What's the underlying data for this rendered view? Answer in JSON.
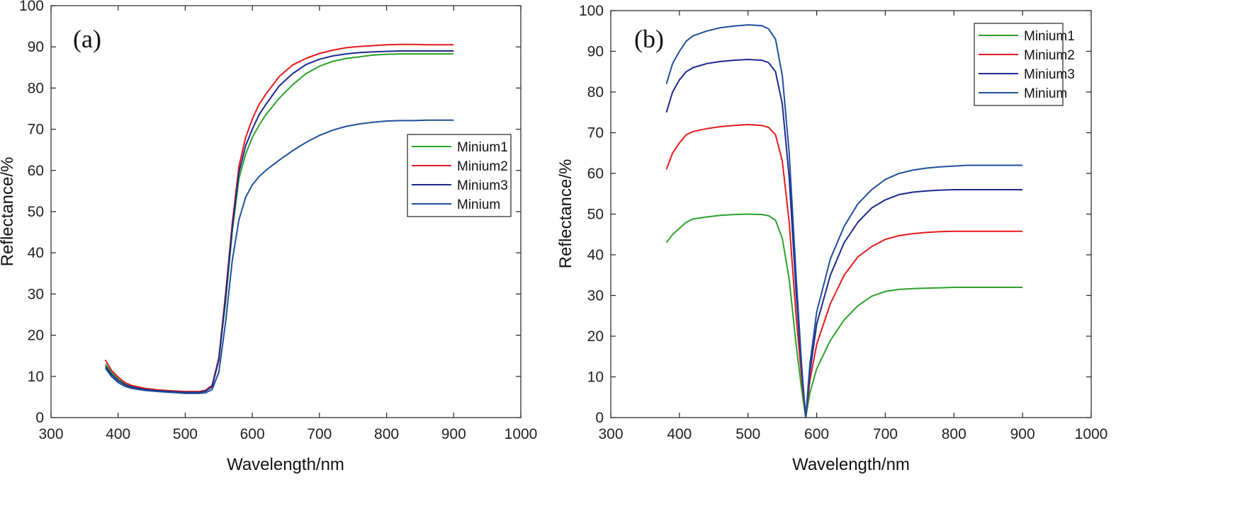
{
  "chart_data": [
    {
      "type": "line",
      "panel_label": "(a)",
      "xlabel": "Wavelength/nm",
      "ylabel": "Reflectance/%",
      "xlim": [
        300,
        1000
      ],
      "ylim": [
        0,
        100
      ],
      "xticks": [
        300,
        400,
        500,
        600,
        700,
        800,
        900,
        1000
      ],
      "yticks": [
        0,
        10,
        20,
        30,
        40,
        50,
        60,
        70,
        80,
        90,
        100
      ],
      "legend_position": "right",
      "series": [
        {
          "name": "Minium1",
          "color": "#2ca02c",
          "x": [
            381,
            390,
            400,
            410,
            420,
            440,
            460,
            480,
            500,
            520,
            530,
            540,
            550,
            560,
            570,
            580,
            590,
            600,
            610,
            620,
            640,
            660,
            680,
            700,
            720,
            740,
            760,
            780,
            800,
            820,
            840,
            860,
            880,
            900
          ],
          "y": [
            13,
            11,
            9.5,
            8.3,
            7.6,
            7,
            6.7,
            6.5,
            6.3,
            6.3,
            6.6,
            7.8,
            14,
            28,
            45,
            58,
            64,
            68,
            71,
            73.5,
            77.5,
            80.8,
            83.5,
            85.3,
            86.5,
            87.2,
            87.6,
            88,
            88.2,
            88.3,
            88.3,
            88.3,
            88.3,
            88.3
          ]
        },
        {
          "name": "Minium2",
          "color": "#e41a1c",
          "x": [
            381,
            390,
            400,
            410,
            420,
            440,
            460,
            480,
            500,
            520,
            530,
            540,
            550,
            560,
            570,
            580,
            590,
            600,
            610,
            620,
            640,
            660,
            680,
            700,
            720,
            740,
            760,
            780,
            800,
            820,
            840,
            860,
            880,
            900
          ],
          "y": [
            14,
            11.5,
            9.8,
            8.5,
            7.8,
            7.1,
            6.7,
            6.5,
            6.3,
            6.3,
            6.6,
            7.8,
            14.5,
            30,
            47,
            61,
            68,
            72.5,
            76,
            78.5,
            82.8,
            85.6,
            87.2,
            88.4,
            89.2,
            89.8,
            90.1,
            90.3,
            90.5,
            90.6,
            90.6,
            90.5,
            90.5,
            90.5
          ]
        },
        {
          "name": "Minium3",
          "color": "#1b2a8c",
          "x": [
            381,
            390,
            400,
            410,
            420,
            440,
            460,
            480,
            500,
            520,
            530,
            540,
            550,
            560,
            570,
            580,
            590,
            600,
            610,
            620,
            640,
            660,
            680,
            700,
            720,
            740,
            760,
            780,
            800,
            820,
            840,
            860,
            880,
            900
          ],
          "y": [
            12.5,
            10.5,
            9,
            8,
            7.4,
            6.8,
            6.5,
            6.3,
            6.1,
            6.1,
            6.4,
            7.5,
            14,
            29,
            46,
            59.5,
            66,
            70,
            73.5,
            76,
            80.5,
            83.5,
            85.7,
            87,
            87.8,
            88.3,
            88.6,
            88.8,
            88.9,
            89,
            89,
            89,
            89,
            89
          ]
        },
        {
          "name": "Minium",
          "color": "#1f4e9c",
          "x": [
            381,
            390,
            400,
            410,
            420,
            440,
            460,
            480,
            500,
            520,
            530,
            540,
            550,
            560,
            570,
            580,
            590,
            600,
            610,
            620,
            640,
            660,
            680,
            700,
            720,
            740,
            760,
            780,
            800,
            820,
            840,
            860,
            880,
            900
          ],
          "y": [
            12,
            10,
            8.5,
            7.6,
            7.1,
            6.6,
            6.3,
            6.1,
            5.9,
            5.9,
            6,
            6.8,
            11,
            23,
            38,
            48,
            53.5,
            56.5,
            58.5,
            60,
            62.5,
            64.8,
            66.8,
            68.5,
            69.8,
            70.7,
            71.3,
            71.7,
            72,
            72.1,
            72.1,
            72.2,
            72.2,
            72.2
          ]
        }
      ]
    },
    {
      "type": "line",
      "panel_label": "(b)",
      "xlabel": "Wavelength/nm",
      "ylabel": "Reflectance/%",
      "xlim": [
        300,
        1000
      ],
      "ylim": [
        0,
        100
      ],
      "xticks": [
        300,
        400,
        500,
        600,
        700,
        800,
        900,
        1000
      ],
      "yticks": [
        0,
        10,
        20,
        30,
        40,
        50,
        60,
        70,
        80,
        90,
        100
      ],
      "legend_position": "top-right",
      "series": [
        {
          "name": "Minium1",
          "color": "#2ca02c",
          "x": [
            381,
            390,
            400,
            410,
            420,
            440,
            460,
            480,
            500,
            520,
            530,
            540,
            550,
            560,
            570,
            578,
            584,
            590,
            600,
            620,
            640,
            660,
            680,
            700,
            720,
            740,
            760,
            780,
            800,
            820,
            840,
            860,
            880,
            900
          ],
          "y": [
            43,
            45,
            46.5,
            48,
            48.8,
            49.3,
            49.7,
            49.9,
            50,
            49.9,
            49.6,
            48.5,
            44,
            34,
            18,
            7,
            0,
            6,
            12,
            19,
            24,
            27.5,
            29.8,
            31,
            31.5,
            31.7,
            31.8,
            31.9,
            32,
            32,
            32,
            32,
            32,
            32
          ]
        },
        {
          "name": "Minium2",
          "color": "#e41a1c",
          "x": [
            381,
            390,
            400,
            410,
            420,
            440,
            460,
            480,
            500,
            520,
            530,
            540,
            550,
            560,
            570,
            578,
            584,
            590,
            600,
            620,
            640,
            660,
            680,
            700,
            720,
            740,
            760,
            780,
            800,
            820,
            840,
            860,
            880,
            900
          ],
          "y": [
            61,
            65,
            67.5,
            69.5,
            70.3,
            71,
            71.5,
            71.8,
            72,
            71.8,
            71.3,
            69.5,
            63,
            48,
            25,
            10,
            0,
            9,
            18,
            28,
            35,
            39.5,
            42,
            43.8,
            44.7,
            45.2,
            45.5,
            45.7,
            45.8,
            45.8,
            45.8,
            45.8,
            45.8,
            45.8
          ]
        },
        {
          "name": "Minium3",
          "color": "#1b2a8c",
          "x": [
            381,
            390,
            400,
            410,
            420,
            440,
            460,
            480,
            500,
            520,
            530,
            540,
            550,
            560,
            570,
            578,
            584,
            590,
            600,
            620,
            640,
            660,
            680,
            700,
            720,
            740,
            760,
            780,
            800,
            820,
            840,
            860,
            880,
            900
          ],
          "y": [
            75,
            80,
            83,
            85,
            86,
            87,
            87.5,
            87.8,
            88,
            87.8,
            87.2,
            85,
            77,
            59,
            31,
            12,
            0,
            11,
            23,
            35,
            43,
            48,
            51.5,
            53.5,
            54.8,
            55.4,
            55.7,
            55.9,
            56,
            56,
            56,
            56,
            56,
            56
          ]
        },
        {
          "name": "Minium",
          "color": "#1f4e9c",
          "x": [
            381,
            390,
            400,
            410,
            420,
            440,
            460,
            480,
            500,
            520,
            530,
            540,
            550,
            560,
            570,
            578,
            584,
            590,
            600,
            620,
            640,
            660,
            680,
            700,
            720,
            740,
            760,
            780,
            800,
            820,
            840,
            860,
            880,
            900
          ],
          "y": [
            82,
            87,
            90,
            92.5,
            93.8,
            95,
            95.8,
            96.2,
            96.5,
            96.3,
            95.5,
            93,
            84,
            65,
            35,
            13,
            0,
            13,
            26,
            39,
            47,
            52.5,
            56,
            58.5,
            60,
            60.8,
            61.3,
            61.6,
            61.8,
            62,
            62,
            62,
            62,
            62
          ]
        }
      ]
    }
  ]
}
